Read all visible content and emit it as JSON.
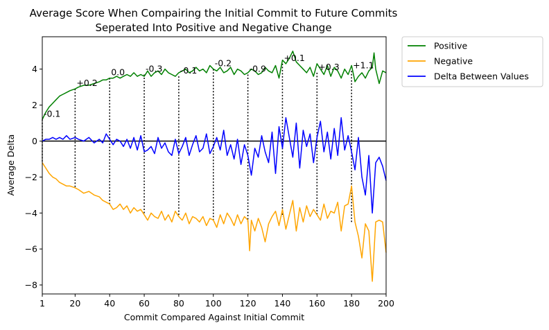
{
  "chart_data": {
    "type": "line",
    "title": "Average Score When Compairing the Initial Commit to Future Commits\nSeperated Into Positive and Negative Change",
    "title_lines": [
      "Average Score When Compairing the Initial Commit to Future Commits",
      "Seperated Into Positive and Negative Change"
    ],
    "xlabel": "Commit Compared Against Initial Commit",
    "ylabel": "Average Delta",
    "xlim": [
      1,
      200
    ],
    "ylim": [
      -8.5,
      5.8
    ],
    "x_ticks": [
      1,
      20,
      40,
      60,
      80,
      100,
      120,
      140,
      160,
      180,
      200
    ],
    "y_ticks": [
      -8,
      -6,
      -4,
      -2,
      0,
      2,
      4
    ],
    "grid": false,
    "legend_position": "outside-top-right",
    "zero_line": {
      "y": 0,
      "color": "#000000"
    },
    "series": [
      {
        "name": "Positive",
        "color": "#008000",
        "x": [
          1,
          3,
          5,
          7,
          9,
          11,
          13,
          15,
          17,
          20,
          22,
          25,
          28,
          31,
          34,
          36,
          38,
          40,
          42,
          44,
          46,
          48,
          50,
          52,
          54,
          56,
          58,
          60,
          62,
          64,
          66,
          68,
          70,
          72,
          74,
          76,
          78,
          80,
          82,
          84,
          86,
          88,
          90,
          92,
          94,
          96,
          98,
          100,
          102,
          104,
          106,
          108,
          110,
          112,
          114,
          116,
          118,
          120,
          122,
          124,
          126,
          128,
          130,
          132,
          134,
          136,
          138,
          140,
          142,
          144,
          146,
          148,
          150,
          152,
          154,
          156,
          158,
          160,
          162,
          164,
          166,
          168,
          170,
          172,
          174,
          176,
          178,
          180,
          182,
          184,
          186,
          188,
          190,
          192,
          193,
          194,
          196,
          198,
          200
        ],
        "values": [
          1.2,
          1.6,
          1.9,
          2.1,
          2.3,
          2.5,
          2.6,
          2.7,
          2.8,
          2.9,
          3.0,
          3.1,
          3.1,
          3.2,
          3.3,
          3.4,
          3.4,
          3.5,
          3.5,
          3.6,
          3.5,
          3.6,
          3.7,
          3.6,
          3.8,
          3.6,
          3.7,
          3.6,
          3.9,
          3.6,
          3.8,
          3.9,
          3.7,
          4.0,
          3.8,
          3.7,
          3.6,
          3.8,
          3.9,
          4.0,
          3.8,
          3.9,
          4.1,
          3.9,
          4.0,
          3.8,
          4.2,
          4.0,
          3.9,
          4.1,
          3.8,
          3.9,
          4.1,
          3.7,
          4.0,
          3.9,
          3.7,
          3.8,
          4.0,
          3.9,
          3.7,
          3.8,
          4.1,
          3.9,
          3.8,
          4.2,
          3.5,
          4.5,
          4.3,
          4.6,
          5.0,
          4.4,
          4.2,
          4.0,
          3.8,
          4.1,
          3.6,
          4.3,
          4.0,
          3.7,
          4.2,
          3.6,
          4.1,
          3.9,
          3.5,
          4.0,
          3.7,
          4.2,
          3.3,
          3.6,
          3.8,
          3.5,
          3.9,
          4.1,
          4.9,
          4.0,
          3.2,
          3.9,
          3.8
        ]
      },
      {
        "name": "Negative",
        "color": "#ffa500",
        "x": [
          1,
          3,
          5,
          7,
          9,
          11,
          13,
          15,
          17,
          20,
          22,
          25,
          28,
          31,
          34,
          36,
          38,
          40,
          42,
          44,
          46,
          48,
          50,
          52,
          54,
          56,
          58,
          60,
          62,
          64,
          66,
          68,
          70,
          72,
          74,
          76,
          78,
          80,
          82,
          84,
          86,
          88,
          90,
          92,
          94,
          96,
          98,
          100,
          102,
          104,
          106,
          108,
          110,
          112,
          114,
          116,
          118,
          120,
          121,
          122,
          124,
          126,
          128,
          130,
          132,
          134,
          136,
          138,
          140,
          142,
          144,
          146,
          148,
          150,
          152,
          154,
          156,
          158,
          160,
          162,
          164,
          166,
          168,
          170,
          172,
          174,
          176,
          178,
          180,
          182,
          184,
          186,
          188,
          190,
          192,
          194,
          196,
          198,
          200
        ],
        "values": [
          -1.2,
          -1.5,
          -1.8,
          -2.0,
          -2.1,
          -2.3,
          -2.4,
          -2.5,
          -2.5,
          -2.6,
          -2.7,
          -2.9,
          -2.8,
          -3.0,
          -3.1,
          -3.3,
          -3.4,
          -3.5,
          -3.8,
          -3.7,
          -3.5,
          -3.8,
          -3.6,
          -4.0,
          -3.7,
          -3.9,
          -3.8,
          -4.1,
          -4.4,
          -4.0,
          -4.2,
          -4.3,
          -3.9,
          -4.4,
          -4.1,
          -4.5,
          -3.9,
          -4.2,
          -4.4,
          -4.0,
          -4.6,
          -4.2,
          -4.3,
          -4.5,
          -4.2,
          -4.7,
          -4.3,
          -4.4,
          -4.8,
          -4.1,
          -4.6,
          -4.0,
          -4.3,
          -4.7,
          -4.1,
          -4.6,
          -4.2,
          -4.4,
          -6.1,
          -4.4,
          -5.0,
          -4.3,
          -4.8,
          -5.6,
          -4.6,
          -4.2,
          -3.9,
          -4.7,
          -3.8,
          -4.9,
          -4.1,
          -3.3,
          -5.0,
          -3.7,
          -4.5,
          -3.6,
          -4.2,
          -3.8,
          -4.1,
          -4.4,
          -3.5,
          -4.3,
          -3.9,
          -4.0,
          -3.4,
          -5.0,
          -3.6,
          -3.5,
          -2.5,
          -4.5,
          -5.3,
          -6.5,
          -4.6,
          -5.0,
          -7.8,
          -4.5,
          -4.4,
          -4.5,
          -6.2
        ]
      },
      {
        "name": "Delta Between Values",
        "color": "#0000ff",
        "x": [
          1,
          3,
          5,
          7,
          9,
          11,
          13,
          15,
          17,
          20,
          22,
          25,
          28,
          31,
          34,
          36,
          38,
          40,
          42,
          44,
          46,
          48,
          50,
          52,
          54,
          56,
          58,
          60,
          62,
          64,
          66,
          68,
          70,
          72,
          74,
          76,
          78,
          80,
          82,
          84,
          86,
          88,
          90,
          92,
          94,
          96,
          98,
          100,
          102,
          104,
          106,
          108,
          110,
          112,
          114,
          116,
          118,
          120,
          122,
          124,
          126,
          128,
          130,
          132,
          134,
          136,
          138,
          140,
          142,
          144,
          146,
          148,
          150,
          152,
          154,
          156,
          158,
          160,
          162,
          164,
          166,
          168,
          170,
          172,
          174,
          176,
          178,
          180,
          182,
          184,
          186,
          188,
          190,
          192,
          194,
          196,
          198,
          200
        ],
        "values": [
          0.0,
          0.1,
          0.1,
          0.2,
          0.1,
          0.2,
          0.1,
          0.3,
          0.1,
          0.2,
          0.1,
          0.0,
          0.2,
          -0.1,
          0.1,
          -0.1,
          0.4,
          0.1,
          -0.2,
          0.1,
          0.0,
          -0.3,
          0.1,
          -0.4,
          0.2,
          -0.5,
          0.3,
          -0.6,
          -0.5,
          -0.3,
          -0.7,
          0.2,
          -0.4,
          -0.1,
          -0.6,
          -0.8,
          0.1,
          -0.7,
          -0.3,
          0.2,
          -0.8,
          -0.2,
          0.3,
          -0.6,
          -0.4,
          0.4,
          -0.7,
          -0.3,
          0.2,
          -0.5,
          0.6,
          -0.8,
          -0.2,
          -1.0,
          0.1,
          -1.3,
          -0.2,
          -0.8,
          -1.9,
          -0.4,
          -0.9,
          0.3,
          -0.6,
          -1.2,
          0.5,
          -1.8,
          0.8,
          -0.4,
          1.3,
          0.2,
          -0.9,
          1.0,
          -1.5,
          0.6,
          -0.3,
          0.4,
          -1.2,
          0.2,
          1.1,
          -0.6,
          0.5,
          -1.0,
          0.7,
          -0.8,
          1.3,
          -0.5,
          0.3,
          -0.6,
          -1.6,
          0.2,
          -2.0,
          -3.0,
          -0.8,
          -4.0,
          -1.2,
          -0.9,
          -1.4,
          -2.2
        ]
      }
    ],
    "markers": [
      {
        "x": 1,
        "y_low": -1.2,
        "y_high": 1.2,
        "label": "-0.1"
      },
      {
        "x": 20,
        "y_low": -2.6,
        "y_high": 2.9,
        "label": "+0.2"
      },
      {
        "x": 40,
        "y_low": -3.5,
        "y_high": 3.5,
        "label": "0.0"
      },
      {
        "x": 60,
        "y_low": -4.1,
        "y_high": 3.7,
        "label": "-0.3"
      },
      {
        "x": 80,
        "y_low": -4.2,
        "y_high": 3.6,
        "label": "-0.1"
      },
      {
        "x": 100,
        "y_low": -4.4,
        "y_high": 4.0,
        "label": "-0.2"
      },
      {
        "x": 120,
        "y_low": -4.5,
        "y_high": 3.7,
        "label": "-0.9"
      },
      {
        "x": 140,
        "y_low": -4.2,
        "y_high": 4.3,
        "label": "+0.1"
      },
      {
        "x": 160,
        "y_low": -4.1,
        "y_high": 3.8,
        "label": "+0.3"
      },
      {
        "x": 180,
        "y_low": -4.5,
        "y_high": 3.9,
        "label": "+1.1"
      }
    ]
  }
}
